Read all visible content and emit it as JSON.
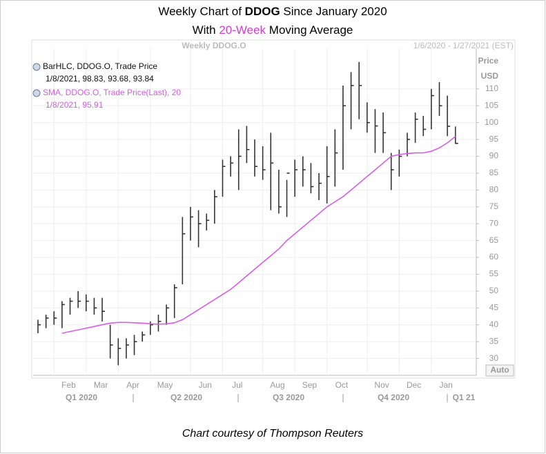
{
  "chart_data": {
    "type": "hlc",
    "title_parts": [
      "Weekly Chart of ",
      "DDOG",
      " Since January 2020"
    ],
    "subtitle_parts": [
      "With ",
      "20-Week",
      " Moving Average"
    ],
    "header": "Weekly DDOG.O",
    "date_range": "1/6/2020 - 1/27/2021 (EST)",
    "axis_label": [
      "Price",
      "USD"
    ],
    "auto_label": "Auto",
    "footer": "Chart courtesy of Thompson Reuters",
    "categories": [
      null,
      null,
      null,
      null,
      "Feb",
      null,
      null,
      null,
      "Mar",
      null,
      null,
      null,
      "Apr",
      null,
      null,
      null,
      "May",
      null,
      null,
      null,
      null,
      "Jun",
      null,
      null,
      null,
      "Jul",
      null,
      null,
      null,
      null,
      "Aug",
      null,
      null,
      null,
      "Sep",
      null,
      null,
      null,
      "Oct",
      null,
      null,
      null,
      null,
      "Nov",
      null,
      null,
      null,
      "Dec",
      null,
      null,
      null,
      "Jan",
      null
    ],
    "quarters": [
      "Q1 2020",
      "Q2 2020",
      "Q3 2020",
      "Q4 2020",
      "Q1 21"
    ],
    "series": [
      {
        "name": "BarHLC, DDOG.O, Trade Price",
        "legend_values": "1/8/2021, 98.83, 93.68, 93.84",
        "color": "#333333",
        "high": [
          41.5,
          43,
          44,
          47,
          48,
          50,
          49,
          48,
          48,
          40,
          36,
          36,
          37,
          38,
          41,
          43,
          46,
          52,
          72,
          75,
          74,
          73,
          80,
          89,
          90,
          98,
          99,
          95,
          93,
          97,
          86,
          83,
          89,
          90,
          88,
          85,
          93,
          98,
          111,
          115,
          118,
          106,
          104,
          103,
          91,
          92,
          97,
          103,
          102,
          110,
          112,
          108,
          98.83
        ],
        "low": [
          37.5,
          39,
          40,
          39,
          43,
          45,
          44,
          43,
          41,
          30,
          28,
          30,
          31,
          35,
          37,
          38,
          40,
          42,
          52,
          65,
          63,
          68,
          70,
          78,
          84,
          80,
          88,
          84,
          83,
          74,
          73,
          72,
          78,
          81,
          79,
          77,
          76,
          81,
          86,
          98,
          101,
          97,
          91,
          91,
          80,
          84,
          90,
          94,
          96,
          98,
          102,
          96,
          93.68
        ],
        "close": [
          40,
          42,
          42,
          46,
          47,
          47,
          47,
          45,
          44,
          34,
          33,
          34,
          35,
          37,
          40,
          41,
          45,
          51,
          67,
          72,
          70,
          71,
          78,
          87,
          88,
          90,
          92,
          87,
          86,
          88,
          75,
          85,
          86,
          86,
          81,
          82,
          84,
          91,
          105,
          111,
          111,
          100,
          99,
          97,
          86,
          90,
          95,
          101,
          98,
          108,
          105,
          98.9,
          93.84
        ]
      },
      {
        "name": "SMA, DDOG.O, Trade Price(Last),  20",
        "legend_values": "1/8/2021, 95.91",
        "color": "#d65ce8",
        "values": [
          null,
          null,
          null,
          37.5,
          38,
          38.5,
          39,
          39.5,
          40,
          40.5,
          40.7,
          40.7,
          40.6,
          40.5,
          40.3,
          40.2,
          40.3,
          40.6,
          41.5,
          43,
          44.5,
          46,
          47.5,
          49,
          50.5,
          52.5,
          54.5,
          56.5,
          58.5,
          60.5,
          62.5,
          65,
          67,
          69,
          71,
          73,
          75,
          76.5,
          78,
          80,
          82,
          84,
          86,
          88,
          90,
          90.5,
          90.8,
          91,
          91,
          91.5,
          92.5,
          94,
          95.91
        ]
      }
    ],
    "ylim": [
      25,
      120
    ],
    "yticks": [
      30,
      35,
      40,
      45,
      50,
      55,
      60,
      65,
      70,
      75,
      80,
      85,
      90,
      95,
      100,
      105,
      110
    ],
    "grid": true
  }
}
